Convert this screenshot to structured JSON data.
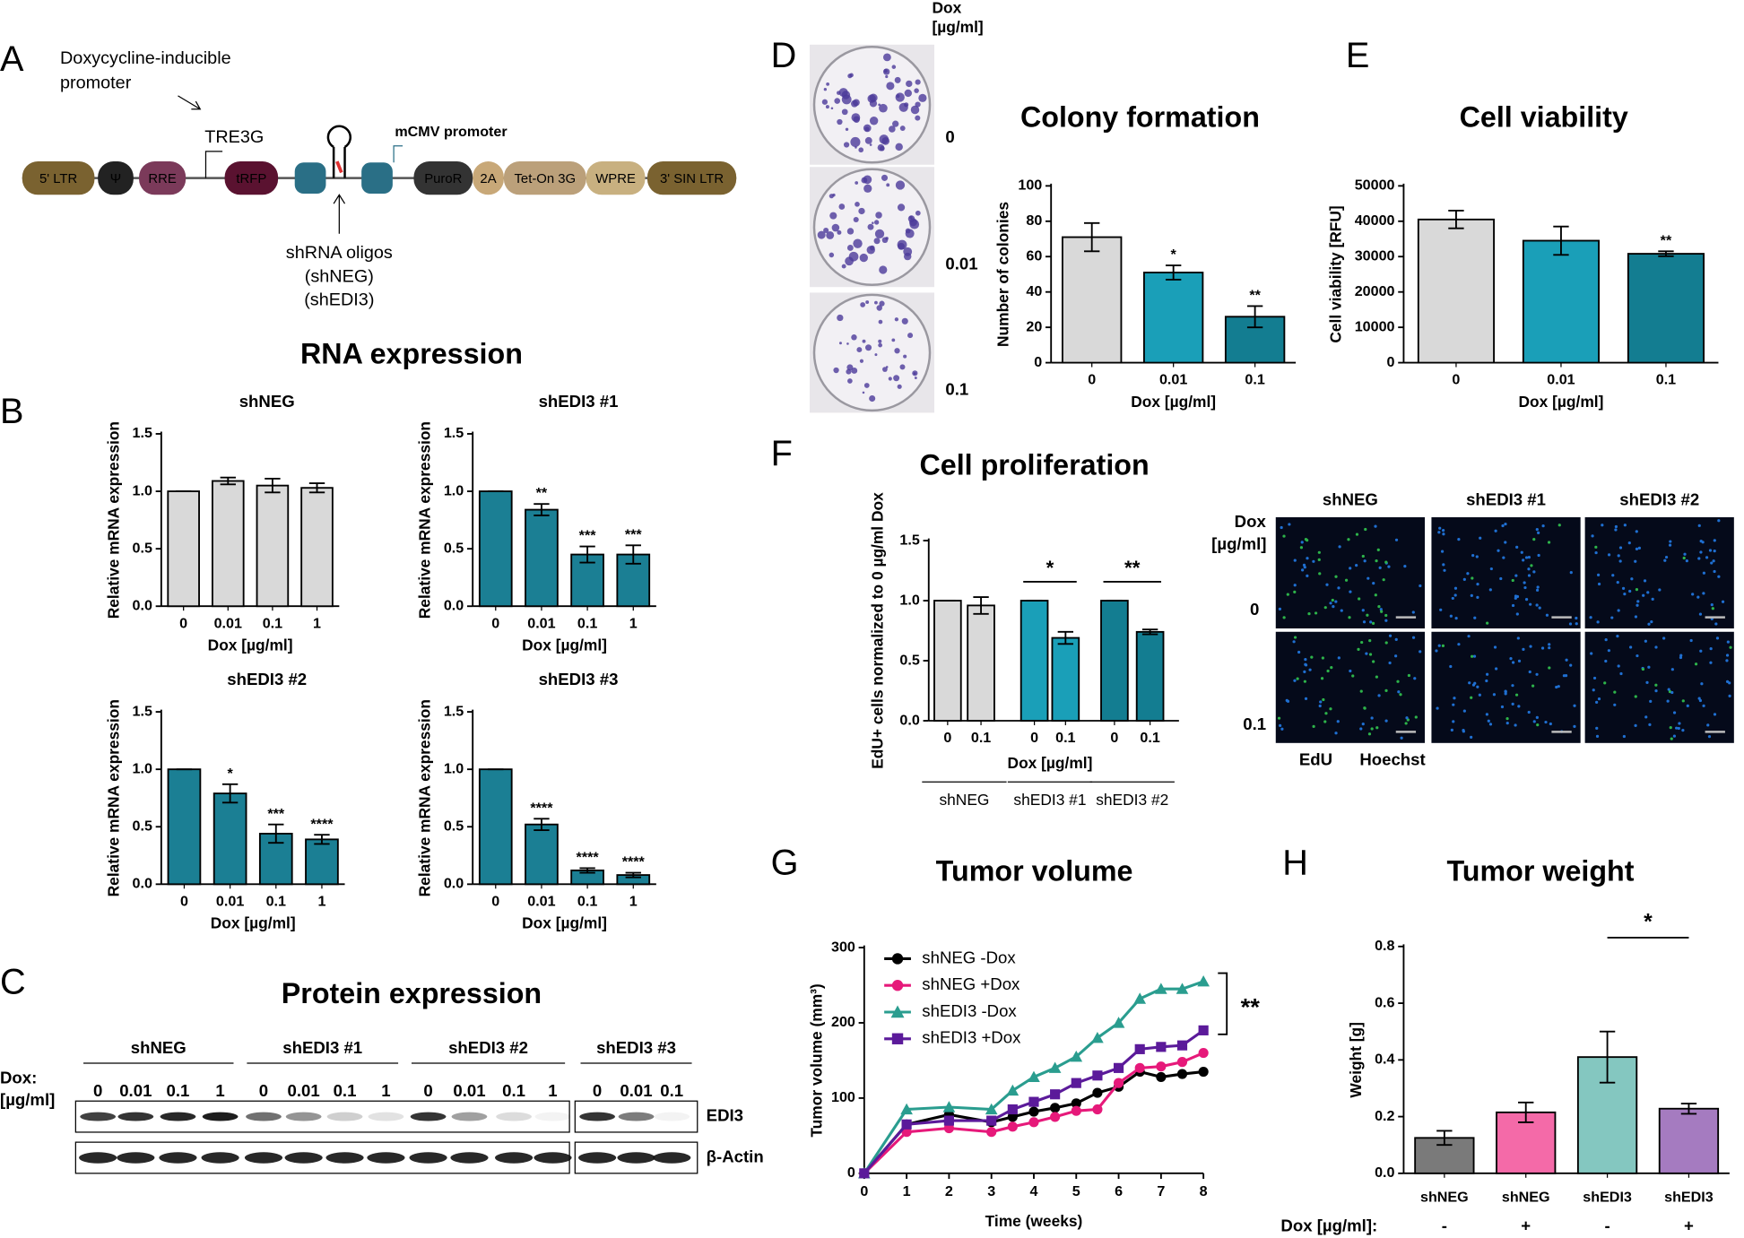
{
  "figure": {
    "panel_labels": [
      "A",
      "B",
      "C",
      "D",
      "E",
      "F",
      "G",
      "H"
    ],
    "rna_title": "RNA expression"
  },
  "construct": {
    "promoter_note": [
      "Doxycycline-inducible",
      "promoter"
    ],
    "tre3g": "TRE3G",
    "mcmv": "mCMV  promoter",
    "elements": [
      "5' LTR",
      "Ψ",
      "RRE",
      "tRFP",
      "PuroR",
      "2A",
      "Tet-On 3G",
      "WPRE",
      "3' SIN LTR"
    ],
    "oligos": [
      "shRNA oligos",
      "(shNEG)",
      "(shEDI3)"
    ]
  },
  "blot": {
    "title": "Protein expression",
    "dox_label": [
      "Dox:",
      "[µg/ml]"
    ],
    "groups": [
      {
        "name": "shNEG",
        "lanes": [
          "0",
          "0.01",
          "0.1",
          "1"
        ]
      },
      {
        "name": "shEDI3 #1",
        "lanes": [
          "0",
          "0.01",
          "0.1",
          "1"
        ]
      },
      {
        "name": "shEDI3 #2",
        "lanes": [
          "0",
          "0.01",
          "0.1",
          "1"
        ]
      },
      {
        "name": "shEDI3 #3",
        "lanes": [
          "0",
          "0.01",
          "0.1"
        ]
      }
    ],
    "rows": [
      "EDI3",
      "β-Actin"
    ]
  },
  "plates": {
    "label": [
      "Dox",
      "[µg/ml]"
    ],
    "rows": [
      "0",
      "0.01",
      "0.1"
    ]
  },
  "microscopy": {
    "columns": [
      "shNEG",
      "shEDI3 #1",
      "shEDI3 #2"
    ],
    "row_label": [
      "Dox",
      "[µg/ml]"
    ],
    "rows": [
      "0",
      "0.1"
    ],
    "channels": [
      {
        "name": "EdU",
        "color": "#2db34a"
      },
      {
        "name": "Hoechst",
        "color": "#1f6fd1"
      }
    ]
  },
  "chart_data": [
    {
      "type": "bar",
      "title": "shNEG",
      "categories": [
        "0",
        "0.01",
        "0.1",
        "1"
      ],
      "values": [
        1.0,
        1.09,
        1.05,
        1.03
      ],
      "errors": [
        0,
        0.03,
        0.06,
        0.04
      ],
      "color": "#d9d9d9",
      "xlabel": "Dox [µg/ml]",
      "ylabel": "Relative mRNA expression",
      "ylim": [
        0,
        1.5
      ],
      "yticks": [
        {
          "value": 0,
          "label": "0.0"
        },
        {
          "value": 0.5,
          "label": "0.5"
        },
        {
          "value": 1,
          "label": "1.0"
        },
        {
          "value": 1.5,
          "label": "1.5"
        }
      ]
    },
    {
      "type": "bar",
      "title": "shEDI3 #1",
      "categories": [
        "0",
        "0.01",
        "0.1",
        "1"
      ],
      "values": [
        1.0,
        0.84,
        0.45,
        0.45
      ],
      "errors": [
        0,
        0.05,
        0.07,
        0.08
      ],
      "annotations": [
        null,
        "**",
        "***",
        "***"
      ],
      "color": "#1b7f94",
      "xlabel": "Dox [µg/ml]",
      "ylabel": "Relative mRNA expression",
      "ylim": [
        0,
        1.5
      ],
      "yticks": [
        {
          "value": 0,
          "label": "0.0"
        },
        {
          "value": 0.5,
          "label": "0.5"
        },
        {
          "value": 1,
          "label": "1.0"
        },
        {
          "value": 1.5,
          "label": "1.5"
        }
      ]
    },
    {
      "type": "bar",
      "title": "shEDI3 #2",
      "categories": [
        "0",
        "0.01",
        "0.1",
        "1"
      ],
      "values": [
        1.0,
        0.79,
        0.44,
        0.39
      ],
      "errors": [
        0,
        0.08,
        0.08,
        0.04
      ],
      "annotations": [
        null,
        "*",
        "***",
        "****"
      ],
      "color": "#1b7f94",
      "xlabel": "Dox [µg/ml]",
      "ylabel": "Relative mRNA expression",
      "ylim": [
        0,
        1.5
      ],
      "yticks": [
        {
          "value": 0,
          "label": "0.0"
        },
        {
          "value": 0.5,
          "label": "0.5"
        },
        {
          "value": 1,
          "label": "1.0"
        },
        {
          "value": 1.5,
          "label": "1.5"
        }
      ]
    },
    {
      "type": "bar",
      "title": "shEDI3 #3",
      "categories": [
        "0",
        "0.01",
        "0.1",
        "1"
      ],
      "values": [
        1.0,
        0.52,
        0.12,
        0.08
      ],
      "errors": [
        0,
        0.05,
        0.02,
        0.02
      ],
      "annotations": [
        null,
        "****",
        "****",
        "****"
      ],
      "color": "#1b7f94",
      "xlabel": "Dox [µg/ml]",
      "ylabel": "Relative mRNA expression",
      "ylim": [
        0,
        1.5
      ],
      "yticks": [
        {
          "value": 0,
          "label": "0.0"
        },
        {
          "value": 0.5,
          "label": "0.5"
        },
        {
          "value": 1,
          "label": "1.0"
        },
        {
          "value": 1.5,
          "label": "1.5"
        }
      ]
    },
    {
      "type": "bar",
      "title": "Colony formation",
      "categories": [
        "0",
        "0.01",
        "0.1"
      ],
      "values": [
        71,
        51,
        26
      ],
      "errors": [
        8,
        4,
        6
      ],
      "annotations": [
        null,
        "*",
        "**"
      ],
      "colors": [
        "#d9d9d9",
        "#1a9fb8",
        "#137d91"
      ],
      "xlabel": "Dox [µg/ml]",
      "ylabel": "Number of colonies",
      "ylim": [
        0,
        100
      ],
      "yticks": [
        0,
        20,
        40,
        60,
        80,
        100
      ]
    },
    {
      "type": "bar",
      "title": "Cell viability",
      "categories": [
        "0",
        "0.01",
        "0.1"
      ],
      "values": [
        40500,
        34500,
        30800
      ],
      "errors": [
        2500,
        4000,
        700
      ],
      "annotations": [
        null,
        null,
        "**"
      ],
      "colors": [
        "#d9d9d9",
        "#1a9fb8",
        "#137d91"
      ],
      "xlabel": "Dox [µg/ml]",
      "ylabel": "Cell viability [RFU]",
      "ylim": [
        0,
        50000
      ],
      "yticks": [
        0,
        10000,
        20000,
        30000,
        40000,
        50000
      ]
    },
    {
      "type": "bar",
      "title": "Cell proliferation",
      "categories": [
        "0",
        "0.1",
        "0",
        "0.1",
        "0",
        "0.1"
      ],
      "groups": [
        "shNEG",
        "shEDI3 #1",
        "shEDI3 #2"
      ],
      "group_annotations": [
        null,
        "*",
        "**"
      ],
      "values": [
        1.0,
        0.96,
        1.0,
        0.69,
        1.0,
        0.74
      ],
      "errors": [
        0,
        0.07,
        0,
        0.05,
        0,
        0.02
      ],
      "colors": [
        "#d9d9d9",
        "#d9d9d9",
        "#1a9fb8",
        "#1a9fb8",
        "#137d91",
        "#137d91"
      ],
      "xlabel": "Dox [µg/ml]",
      "ylabel": "EdU+ cells normalized to 0 µg/ml Dox",
      "ylim": [
        0,
        1.5
      ],
      "yticks": [
        {
          "value": 0,
          "label": "0.0"
        },
        {
          "value": 0.5,
          "label": "0.5"
        },
        {
          "value": 1,
          "label": "1.0"
        },
        {
          "value": 1.5,
          "label": "1.5"
        }
      ]
    },
    {
      "type": "line",
      "title": "Tumor volume",
      "x": [
        0,
        1,
        2,
        3,
        3.5,
        4,
        4.5,
        5,
        5.5,
        6,
        6.5,
        7,
        7.5,
        8
      ],
      "series": [
        {
          "name": "shNEG -Dox",
          "color": "#000000",
          "marker": "circle",
          "values": [
            0,
            65,
            78,
            68,
            75,
            82,
            87,
            93,
            107,
            115,
            135,
            128,
            132,
            135
          ]
        },
        {
          "name": "shNEG +Dox",
          "color": "#e6197a",
          "marker": "circle",
          "values": [
            0,
            55,
            60,
            55,
            62,
            68,
            75,
            83,
            85,
            120,
            140,
            142,
            148,
            160
          ]
        },
        {
          "name": "shEDI3 -Dox",
          "color": "#2a9d8f",
          "marker": "triangle",
          "values": [
            0,
            85,
            88,
            85,
            110,
            128,
            140,
            155,
            180,
            200,
            232,
            245,
            245,
            255
          ]
        },
        {
          "name": "shEDI3 +Dox",
          "color": "#5b1a9a",
          "marker": "square",
          "values": [
            0,
            65,
            70,
            70,
            85,
            95,
            105,
            120,
            130,
            140,
            165,
            168,
            170,
            190
          ]
        }
      ],
      "xlabel": "Time (weeks)",
      "ylabel": "Tumor volume (mm³)",
      "xlim": [
        0,
        8
      ],
      "xticks": [
        0,
        1,
        2,
        3,
        4,
        5,
        6,
        7,
        8
      ],
      "ylim": [
        0,
        300
      ],
      "yticks": [
        0,
        100,
        200,
        300
      ],
      "legend": "upper left",
      "bracket_label": "**"
    },
    {
      "type": "bar",
      "title": "Tumor weight",
      "categories": [
        "shNEG",
        "shNEG",
        "shEDI3",
        "shEDI3"
      ],
      "values": [
        0.125,
        0.215,
        0.41,
        0.228
      ],
      "errors": [
        0.025,
        0.035,
        0.09,
        0.018
      ],
      "colors": [
        "#7a7a7a",
        "#f46aa8",
        "#84c7c0",
        "#a57bc0"
      ],
      "ylabel": "Weight [g]",
      "ylim": [
        0,
        0.8
      ],
      "yticks": [
        {
          "value": 0,
          "label": "0.0"
        },
        {
          "value": 0.2,
          "label": "0.2"
        },
        {
          "value": 0.4,
          "label": "0.4"
        },
        {
          "value": 0.6,
          "label": "0.6"
        },
        {
          "value": 0.8,
          "label": "0.8"
        }
      ],
      "dox_label": "Dox [µg/ml]:",
      "dox": [
        "-",
        "+",
        "-",
        "+"
      ],
      "bracket_label": "*"
    }
  ]
}
